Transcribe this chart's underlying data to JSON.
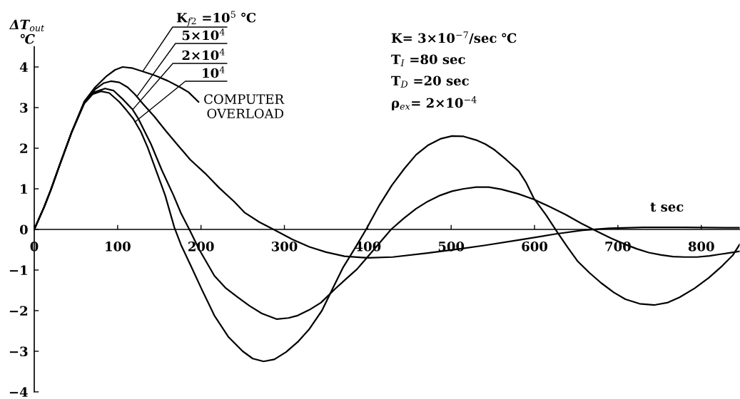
{
  "chart_data": {
    "type": "line",
    "xlabel": "t sec",
    "ylabel": "ΔT$_{out}$\n℃",
    "xlim": [
      0,
      846
    ],
    "ylim": [
      -4,
      4.5
    ],
    "xticks": [
      0,
      100,
      200,
      300,
      400,
      500,
      600,
      700,
      800
    ],
    "yticks": [
      -4,
      -3,
      -2,
      -1,
      0,
      1,
      2,
      3,
      4
    ],
    "line_style": "solid",
    "series": [
      {
        "name": "K$_{f2}$ =10$^{5}$ ℃",
        "color": "#000000",
        "x": [
          0,
          12,
          20,
          30,
          45,
          60,
          73,
          87,
          97,
          106,
          118,
          130,
          145,
          160,
          175,
          185,
          197
        ],
        "values": [
          0,
          0.56,
          0.98,
          1.56,
          2.4,
          3.15,
          3.5,
          3.78,
          3.93,
          4.0,
          3.97,
          3.89,
          3.79,
          3.66,
          3.5,
          3.38,
          3.14
        ]
      },
      {
        "name": "5×10$^{4}$",
        "color": "#000000",
        "x": [
          0,
          12,
          20,
          30,
          45,
          60,
          73,
          83,
          92,
          102,
          112,
          121,
          130,
          144,
          158,
          172,
          187,
          205,
          222,
          240,
          252,
          270,
          287,
          310,
          330,
          350,
          372,
          400,
          430,
          472,
          510,
          541,
          581,
          626,
          658,
          690,
          730,
          780,
          846
        ],
        "values": [
          0,
          0.56,
          0.98,
          1.56,
          2.4,
          3.13,
          3.45,
          3.6,
          3.65,
          3.62,
          3.5,
          3.32,
          3.1,
          2.78,
          2.42,
          2.08,
          1.72,
          1.38,
          1.02,
          0.68,
          0.42,
          0.18,
          0.0,
          -0.25,
          -0.43,
          -0.56,
          -0.66,
          -0.7,
          -0.68,
          -0.58,
          -0.48,
          -0.39,
          -0.26,
          -0.11,
          -0.02,
          0.03,
          0.05,
          0.05,
          0.04
        ]
      },
      {
        "name": "2×10$^{4}$",
        "color": "#000000",
        "x": [
          0,
          12,
          20,
          30,
          45,
          60,
          72,
          85,
          95,
          107,
          118,
          125,
          140,
          153,
          167,
          176,
          186,
          198,
          216,
          230,
          244,
          258,
          273,
          291,
          305,
          316,
          330,
          344,
          361,
          375,
          387,
          398,
          413,
          428,
          443,
          458,
          472,
          487,
          501,
          515,
          530,
          545,
          560,
          580,
          599,
          618,
          637,
          656,
          675,
          692,
          709,
          723,
          737,
          752,
          766,
          780,
          795,
          810,
          823,
          846
        ],
        "values": [
          0,
          0.56,
          0.98,
          1.56,
          2.4,
          3.12,
          3.38,
          3.47,
          3.42,
          3.19,
          2.95,
          2.72,
          2.1,
          1.46,
          0.84,
          0.4,
          0.0,
          -0.5,
          -1.14,
          -1.45,
          -1.67,
          -1.88,
          -2.07,
          -2.21,
          -2.18,
          -2.12,
          -1.98,
          -1.8,
          -1.46,
          -1.2,
          -0.98,
          -0.72,
          -0.36,
          0.0,
          0.27,
          0.51,
          0.69,
          0.84,
          0.94,
          1.0,
          1.04,
          1.04,
          0.99,
          0.88,
          0.74,
          0.56,
          0.37,
          0.15,
          -0.05,
          -0.22,
          -0.37,
          -0.48,
          -0.57,
          -0.63,
          -0.67,
          -0.68,
          -0.68,
          -0.65,
          -0.61,
          -0.54
        ]
      },
      {
        "name": "10$^{4}$",
        "color": "#000000",
        "x": [
          0,
          12,
          20,
          30,
          45,
          60,
          70,
          80,
          90,
          102,
          110,
          119,
          128,
          136,
          146,
          157,
          168,
          176,
          187,
          201,
          216,
          233,
          250,
          262,
          275,
          288,
          302,
          316,
          330,
          345,
          358,
          370,
          385,
          398,
          414,
          429,
          444,
          458,
          472,
          487,
          501,
          515,
          530,
          541,
          552,
          566,
          581,
          590,
          599,
          614,
          628,
          640,
          652,
          666,
          680,
          695,
          709,
          726,
          744,
          760,
          774,
          792,
          809,
          825,
          838,
          846
        ],
        "values": [
          0,
          0.56,
          0.98,
          1.56,
          2.4,
          3.1,
          3.33,
          3.4,
          3.36,
          3.14,
          2.95,
          2.72,
          2.4,
          2.02,
          1.46,
          0.84,
          0.05,
          -0.38,
          -0.86,
          -1.48,
          -2.12,
          -2.65,
          -3.0,
          -3.18,
          -3.25,
          -3.2,
          -3.02,
          -2.77,
          -2.45,
          -2.0,
          -1.45,
          -0.95,
          -0.45,
          0.0,
          0.6,
          1.09,
          1.5,
          1.84,
          2.07,
          2.23,
          2.3,
          2.29,
          2.2,
          2.1,
          1.96,
          1.72,
          1.44,
          1.15,
          0.77,
          0.35,
          -0.09,
          -0.45,
          -0.79,
          -1.07,
          -1.32,
          -1.55,
          -1.72,
          -1.83,
          -1.86,
          -1.8,
          -1.67,
          -1.45,
          -1.19,
          -0.9,
          -0.63,
          -0.37
        ]
      }
    ],
    "annotations": [
      {
        "text": "COMPUTER\nOVERLOAD",
        "x": 197,
        "y": 3.14
      },
      "K= 3×10$^{−7}$/sec ℃",
      "T$_{I}$ =80 sec",
      "T$_{D}$ =20 sec",
      "ρ$_{ex}$= 2×10$^{−4}$"
    ]
  }
}
